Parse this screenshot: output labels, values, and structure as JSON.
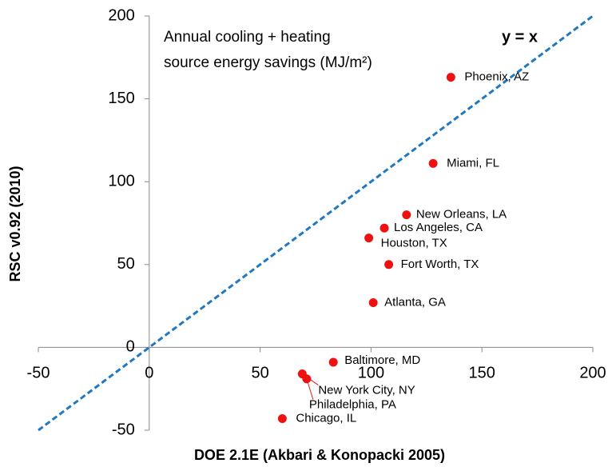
{
  "chart_data": {
    "type": "scatter",
    "annotation": [
      "Annual cooling + heating",
      "source energy savings (MJ/m²)"
    ],
    "reference_label": "y = x",
    "xlabel": "DOE 2.1E (Akbari & Konopacki 2005)",
    "ylabel": "RSC v0.92 (2010)",
    "x": [
      136,
      128,
      116,
      106,
      99,
      108,
      101,
      83,
      69,
      71,
      60
    ],
    "values": [
      163,
      111,
      80,
      72,
      66,
      50,
      27,
      -9,
      -16,
      -19,
      -43
    ],
    "labels": [
      "Phoenix, AZ",
      "Miami, FL",
      "New Orleans, LA",
      "Los Angeles, CA",
      "Houston, TX",
      "Fort Worth, TX",
      "Atlanta, GA",
      "Baltimore, MD",
      "New York City, NY",
      "Philadelphia, PA",
      "Chicago, IL"
    ],
    "color": "#ee1111",
    "reference_color": "#1f78c1",
    "xlim": [
      -50,
      200
    ],
    "ylim": [
      -50,
      200
    ],
    "xticks": [
      -50,
      0,
      50,
      100,
      150,
      200
    ],
    "yticks": [
      -50,
      0,
      50,
      100,
      150,
      200
    ]
  }
}
